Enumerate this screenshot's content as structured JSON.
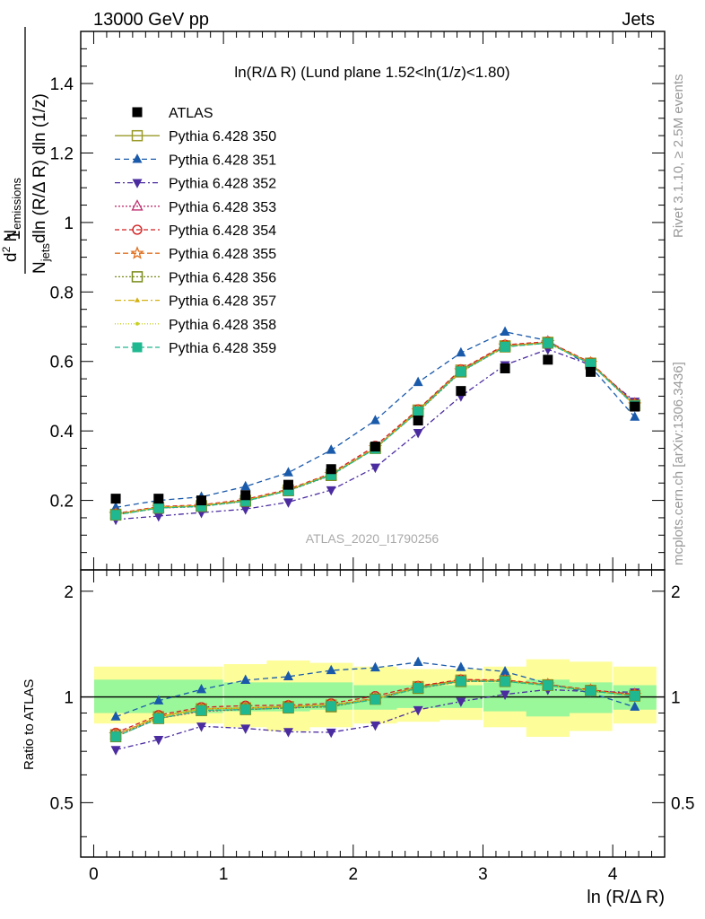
{
  "header": {
    "left": "13000 GeV pp",
    "right": "Jets"
  },
  "side_labels": {
    "rivet": "Rivet 3.1.10, ≥ 2.5M events",
    "mcplots": "mcplots.cern.ch [arXiv:1306.3436]"
  },
  "watermark": "ATLAS_2020_I1790256",
  "plot_title": "ln(R/Δ R) (Lund plane 1.52<ln(1/z)<1.80)",
  "ylabel_main": "1/N_jets d²N_emissions / dln(R/Δ R) dln(1/z)",
  "ylabel_ratio": "Ratio to ATLAS",
  "xlabel": "ln (R/Δ R)",
  "chart_data": {
    "type": "scatter",
    "x": [
      0.17,
      0.5,
      0.83,
      1.17,
      1.5,
      1.83,
      2.17,
      2.5,
      2.83,
      3.17,
      3.5,
      3.83,
      4.17
    ],
    "xlim": [
      -0.1,
      4.4
    ],
    "ylim": [
      0,
      1.55
    ],
    "ratio_ylim": [
      0.35,
      2.3
    ],
    "x_ticks": [
      "0",
      "1",
      "2",
      "3",
      "4"
    ],
    "y_ticks": [
      "0.2",
      "0.4",
      "0.6",
      "0.8",
      "1",
      "1.2",
      "1.4"
    ],
    "ratio_ticks": [
      "0.5",
      "1",
      "2"
    ],
    "reference": {
      "name": "ATLAS",
      "values": [
        0.205,
        0.205,
        0.2,
        0.215,
        0.245,
        0.29,
        0.355,
        0.43,
        0.515,
        0.58,
        0.605,
        0.57,
        0.47
      ],
      "band_inner": [
        [
          0.9,
          1.12
        ],
        [
          0.9,
          1.12
        ],
        [
          0.9,
          1.12
        ],
        [
          0.91,
          1.1
        ],
        [
          0.91,
          1.1
        ],
        [
          0.92,
          1.1
        ],
        [
          0.92,
          1.08
        ],
        [
          0.93,
          1.08
        ],
        [
          0.93,
          1.08
        ],
        [
          0.91,
          1.1
        ],
        [
          0.88,
          1.12
        ],
        [
          0.9,
          1.1
        ],
        [
          0.92,
          1.08
        ]
      ],
      "band_outer": [
        [
          0.84,
          1.22
        ],
        [
          0.84,
          1.22
        ],
        [
          0.84,
          1.22
        ],
        [
          0.82,
          1.24
        ],
        [
          0.8,
          1.27
        ],
        [
          0.82,
          1.25
        ],
        [
          0.84,
          1.22
        ],
        [
          0.85,
          1.2
        ],
        [
          0.86,
          1.2
        ],
        [
          0.82,
          1.22
        ],
        [
          0.77,
          1.28
        ],
        [
          0.8,
          1.26
        ],
        [
          0.84,
          1.22
        ]
      ]
    },
    "series": [
      {
        "name": "Pythia 6.428 350",
        "values": [
          0.16,
          0.18,
          0.185,
          0.2,
          0.23,
          0.275,
          0.35,
          0.46,
          0.575,
          0.645,
          0.655,
          0.595,
          0.475
        ],
        "color": "#9a9a2a",
        "marker": "square-open",
        "dash": ""
      },
      {
        "name": "Pythia 6.428 351",
        "values": [
          0.18,
          0.2,
          0.21,
          0.24,
          0.28,
          0.345,
          0.43,
          0.54,
          0.625,
          0.685,
          0.66,
          0.585,
          0.44
        ],
        "color": "#1a5aab",
        "marker": "triangle-up",
        "dash": "6,4"
      },
      {
        "name": "Pythia 6.428 352",
        "values": [
          0.145,
          0.155,
          0.165,
          0.175,
          0.195,
          0.23,
          0.295,
          0.395,
          0.5,
          0.59,
          0.635,
          0.59,
          0.485
        ],
        "color": "#4b2ca0",
        "marker": "triangle-down",
        "dash": "6,3,2,3"
      },
      {
        "name": "Pythia 6.428 353",
        "values": [
          0.16,
          0.178,
          0.182,
          0.198,
          0.228,
          0.272,
          0.352,
          0.455,
          0.57,
          0.645,
          0.655,
          0.595,
          0.478
        ],
        "color": "#c03070",
        "marker": "triangle-up-open",
        "dash": "2,2"
      },
      {
        "name": "Pythia 6.428 354",
        "values": [
          0.162,
          0.182,
          0.187,
          0.203,
          0.232,
          0.278,
          0.357,
          0.462,
          0.577,
          0.648,
          0.657,
          0.597,
          0.478
        ],
        "color": "#d42020",
        "marker": "circle-open",
        "dash": "5,3"
      },
      {
        "name": "Pythia 6.428 355",
        "values": [
          0.16,
          0.18,
          0.185,
          0.2,
          0.23,
          0.275,
          0.352,
          0.458,
          0.573,
          0.645,
          0.655,
          0.595,
          0.475
        ],
        "color": "#e07020",
        "marker": "star-open",
        "dash": "6,3"
      },
      {
        "name": "Pythia 6.428 356",
        "values": [
          0.158,
          0.178,
          0.183,
          0.198,
          0.228,
          0.272,
          0.35,
          0.455,
          0.57,
          0.642,
          0.653,
          0.593,
          0.473
        ],
        "color": "#7a8a1a",
        "marker": "square-open",
        "dash": "2,2"
      },
      {
        "name": "Pythia 6.428 357",
        "values": [
          0.16,
          0.18,
          0.185,
          0.2,
          0.23,
          0.275,
          0.35,
          0.457,
          0.572,
          0.643,
          0.654,
          0.594,
          0.474
        ],
        "color": "#d4b010",
        "marker": "tri-small",
        "dash": "7,3,2,3"
      },
      {
        "name": "Pythia 6.428 358",
        "values": [
          0.16,
          0.18,
          0.185,
          0.2,
          0.23,
          0.275,
          0.35,
          0.457,
          0.572,
          0.643,
          0.654,
          0.594,
          0.474
        ],
        "color": "#c8d020",
        "marker": "dot",
        "dash": "1,2"
      },
      {
        "name": "Pythia 6.428 359",
        "values": [
          0.158,
          0.178,
          0.183,
          0.198,
          0.228,
          0.273,
          0.349,
          0.456,
          0.571,
          0.642,
          0.653,
          0.593,
          0.473
        ],
        "color": "#20b890",
        "marker": "square-filled",
        "dash": "6,3"
      }
    ]
  }
}
